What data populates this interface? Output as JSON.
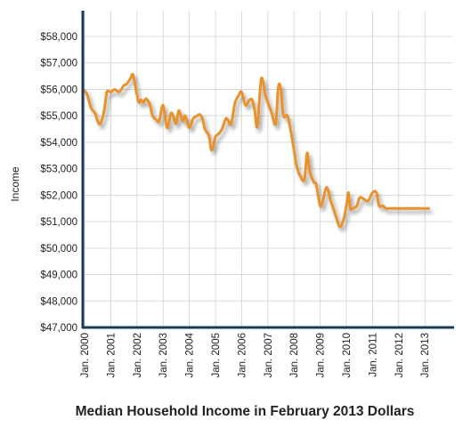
{
  "chart_data": {
    "type": "line",
    "title": "Median Household Income in February 2013 Dollars",
    "xlabel": "",
    "ylabel": "Income",
    "x_ticks": [
      "Jan. 2000",
      "Jan. 2001",
      "Jan. 2002",
      "Jan. 2003",
      "Jan. 2004",
      "Jan. 2005",
      "Jan. 2006",
      "Jan. 2007",
      "Jan. 2008",
      "Jan. 2009",
      "Jan. 2010",
      "Jan. 2011",
      "Jan. 2012",
      "Jan. 2013"
    ],
    "xlim": [
      2000,
      2013.4
    ],
    "ylim": [
      47000,
      58500
    ],
    "y_ticks": [
      47000,
      48000,
      49000,
      50000,
      51000,
      52000,
      53000,
      54000,
      55000,
      56000,
      57000,
      58000
    ],
    "y_tick_labels": [
      "$47,000",
      "$48,000",
      "$49,000",
      "$50,000",
      "$51,000",
      "$52,000",
      "$53,000",
      "$54,000",
      "$55,000",
      "$56,000",
      "$57,000",
      "$58,000"
    ],
    "grid": true,
    "colors": {
      "line": "#e8922e",
      "axis": "#1b3a5c",
      "grid": "#d9d9d9"
    },
    "series": [
      {
        "name": "",
        "x": [
          2000.0,
          2000.1,
          2000.25,
          2000.4,
          2000.5,
          2000.6,
          2000.75,
          2000.85,
          2001.0,
          2001.15,
          2001.3,
          2001.4,
          2001.5,
          2001.6,
          2001.75,
          2001.85,
          2002.0,
          2002.08,
          2002.15,
          2002.25,
          2002.35,
          2002.5,
          2002.6,
          2002.75,
          2002.85,
          2003.0,
          2003.15,
          2003.3,
          2003.4,
          2003.5,
          2003.6,
          2003.75,
          2003.85,
          2004.0,
          2004.15,
          2004.3,
          2004.4,
          2004.5,
          2004.6,
          2004.75,
          2004.85,
          2005.0,
          2005.1,
          2005.25,
          2005.4,
          2005.5,
          2005.6,
          2005.75,
          2005.9,
          2006.0,
          2006.15,
          2006.3,
          2006.4,
          2006.5,
          2006.6,
          2006.75,
          2006.9,
          2007.0,
          2007.15,
          2007.3,
          2007.4,
          2007.5,
          2007.6,
          2007.75,
          2007.9,
          2008.0,
          2008.1,
          2008.25,
          2008.4,
          2008.5,
          2008.6,
          2008.75,
          2008.85,
          2009.0,
          2009.1,
          2009.25,
          2009.4,
          2009.5,
          2009.6,
          2009.75,
          2009.9,
          2010.0,
          2010.08,
          2010.15,
          2010.25,
          2010.4,
          2010.5,
          2010.6,
          2010.75,
          2010.85,
          2011.0,
          2011.15,
          2011.25,
          2011.4,
          2011.5,
          2011.6,
          2011.75,
          2011.85,
          2012.0,
          2012.08,
          2012.15,
          2012.25,
          2012.4,
          2012.5,
          2012.6,
          2012.75,
          2012.85,
          2013.0,
          2013.1,
          2013.15
        ],
        "values": [
          55950,
          55800,
          55300,
          55100,
          54800,
          54700,
          55200,
          55900,
          55900,
          56000,
          55900,
          56000,
          56150,
          56200,
          56400,
          56550,
          55800,
          55500,
          55600,
          55500,
          55650,
          55400,
          55000,
          54850,
          54800,
          55400,
          54550,
          55100,
          54950,
          54700,
          55200,
          54800,
          55000,
          54550,
          54900,
          55000,
          55050,
          54900,
          54500,
          54250,
          53700,
          54200,
          54300,
          54500,
          54900,
          54800,
          54700,
          55500,
          55800,
          55900,
          55400,
          55600,
          55600,
          55200,
          54600,
          56400,
          55800,
          55500,
          55100,
          54700,
          56100,
          56000,
          55000,
          55000,
          54300,
          53700,
          53100,
          52700,
          52600,
          53600,
          52900,
          52500,
          52400,
          51600,
          51800,
          52300,
          51800,
          51500,
          51200,
          50800,
          51100,
          51600,
          52100,
          51500,
          51500,
          51600,
          51900,
          51900,
          51800,
          51800,
          52100,
          52100,
          51600,
          51600,
          51500,
          51500,
          51500,
          51500,
          51500,
          51500,
          51500,
          51500,
          51500,
          51500,
          51500,
          51500,
          51500,
          51500,
          51500,
          51500
        ]
      }
    ]
  }
}
